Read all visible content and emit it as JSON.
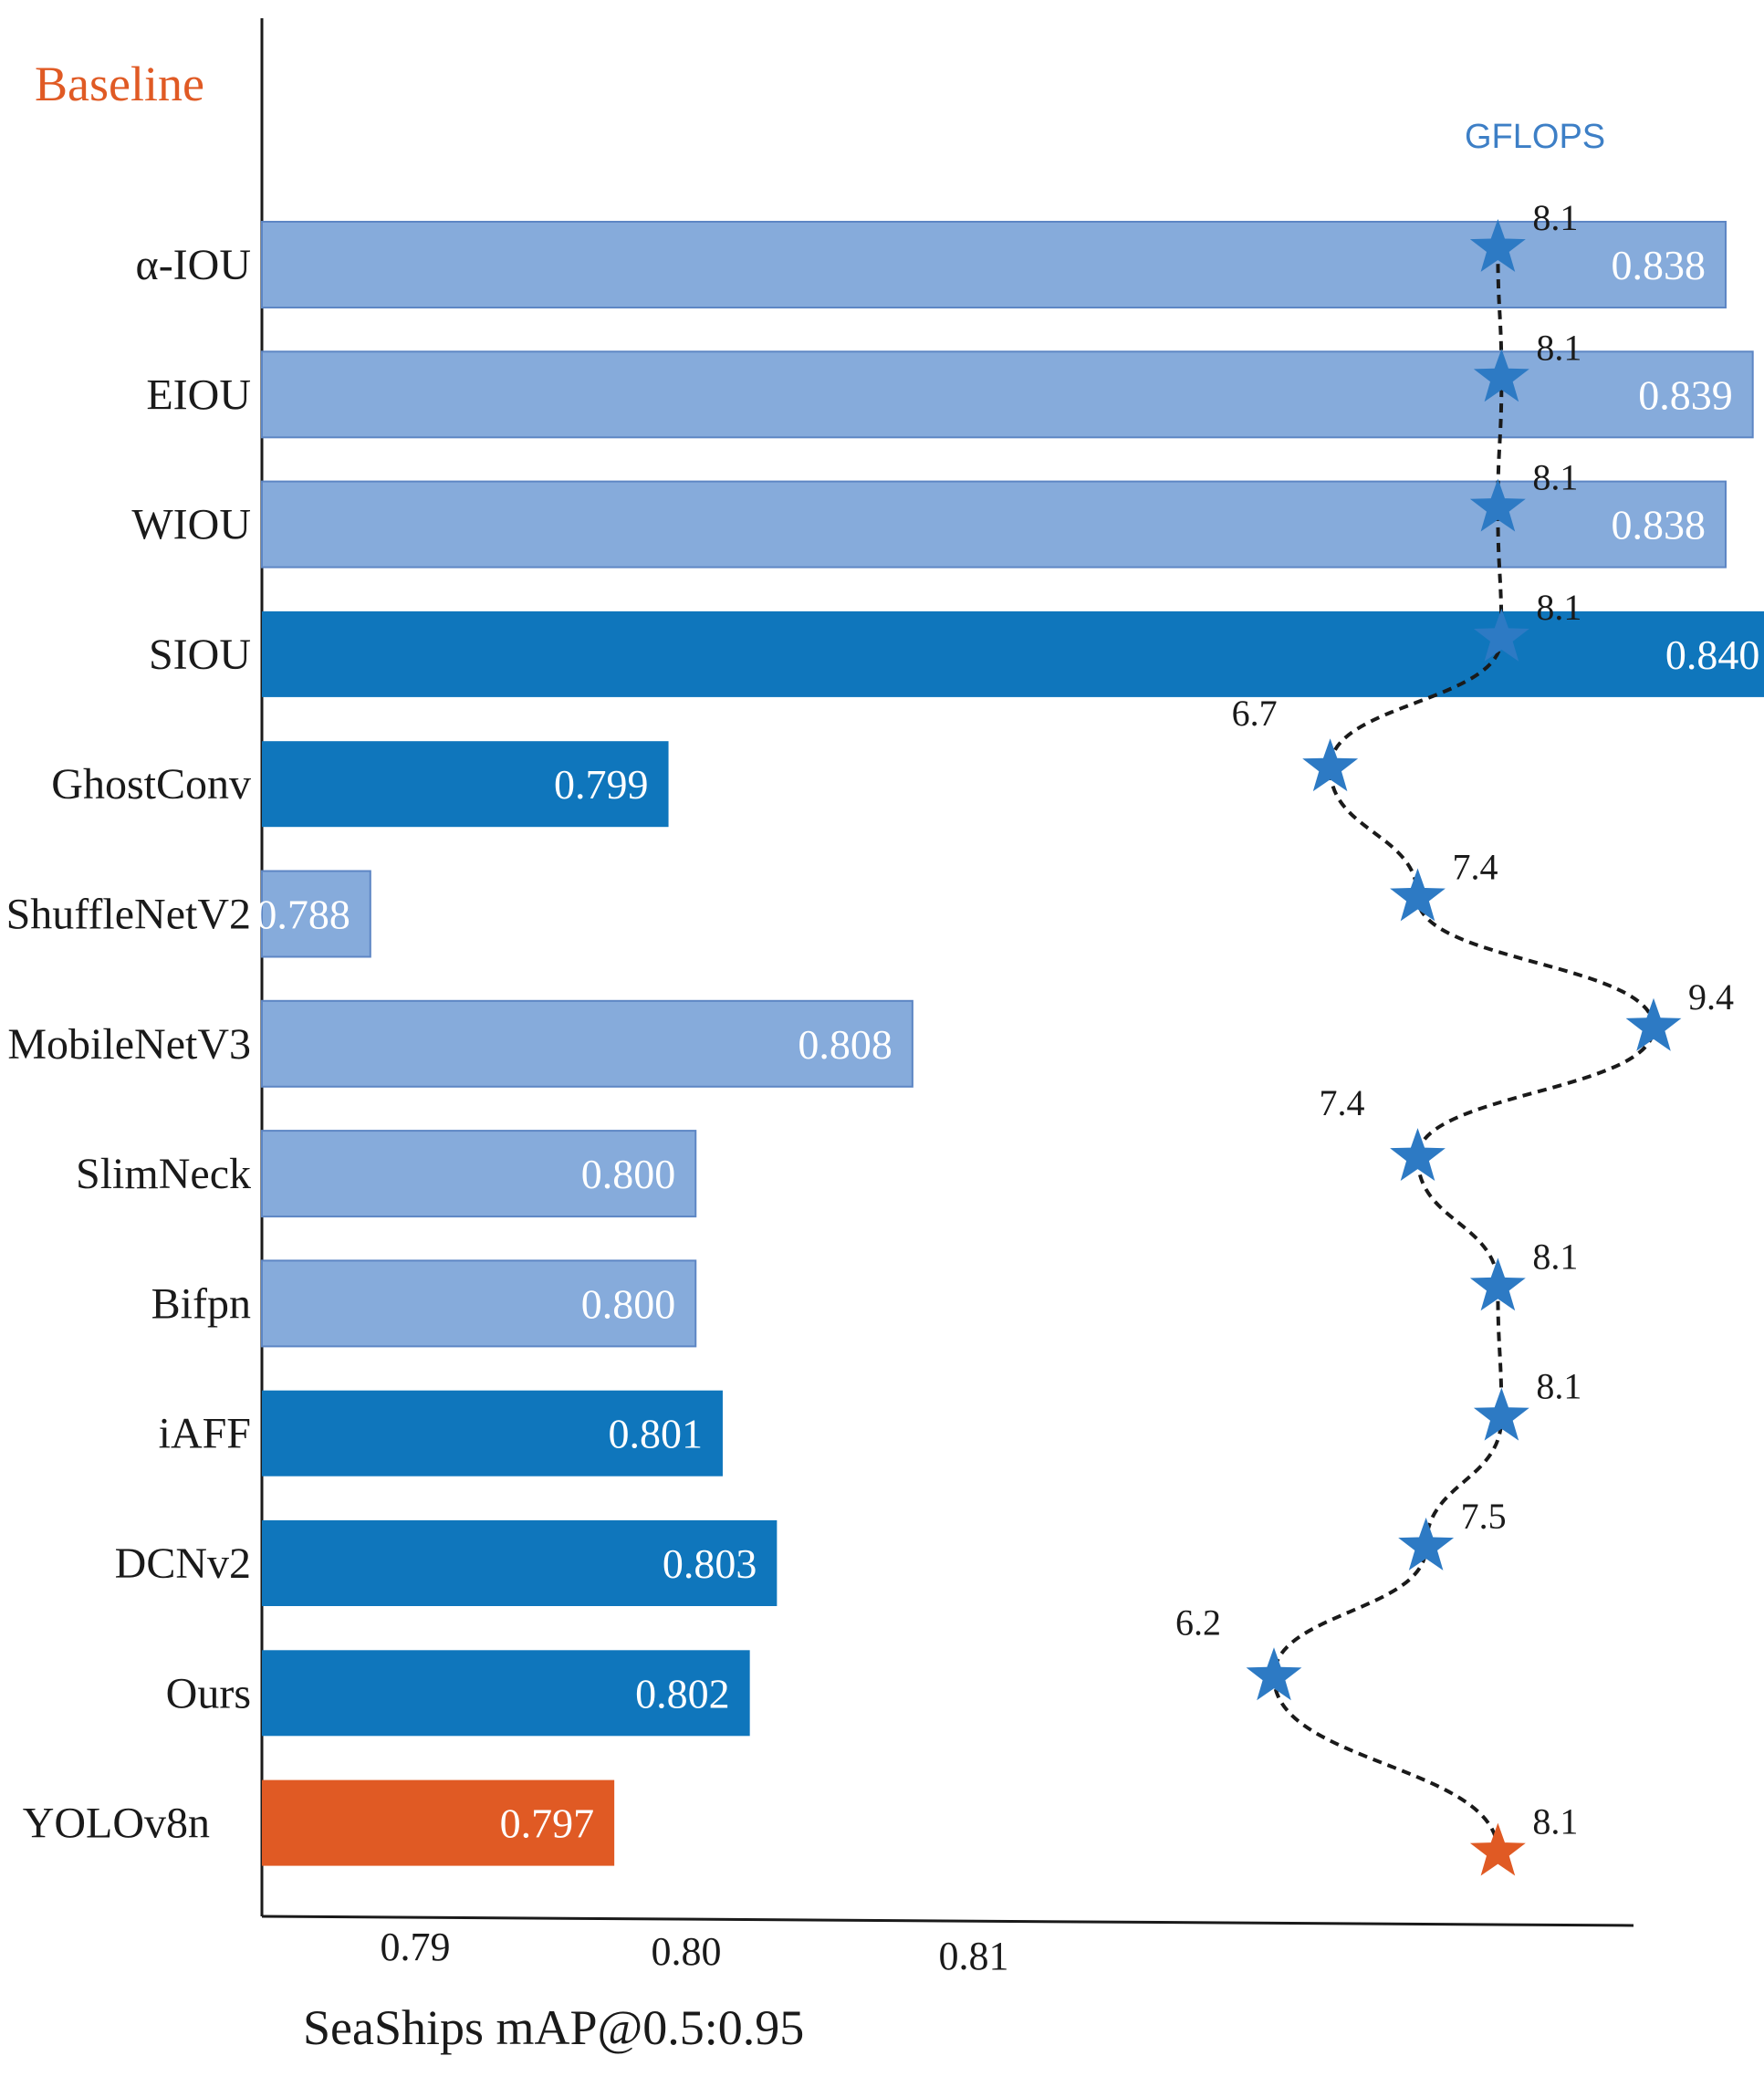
{
  "colors": {
    "light_blue": "#86abdb",
    "dark_blue": "#0f76bc",
    "orange": "#e05a24",
    "star_blue": "#2d7ac4",
    "gflops_title": "#3d7fc6",
    "text": "#1a1a1a"
  },
  "chart_data": {
    "type": "bar",
    "orientation": "horizontal",
    "title": "",
    "xlabel": "SeaShips mAP@0.5:0.95",
    "ylabel": "",
    "x_ticks": [
      "0.79",
      "0.80",
      "0.81"
    ],
    "xlim": [
      0.784,
      0.8346
    ],
    "baseline_label": "Baseline",
    "gflops_title": "GFLOPS",
    "categories": [
      "α-IOU",
      "EIOU",
      "WIOU",
      "SIOU",
      "GhostConv",
      "ShuffleNetV2",
      "MobileNetV3",
      "SlimNeck",
      "Bifpn",
      "iAFF",
      "DCNv2",
      "Ours",
      "YOLOv8n"
    ],
    "values": [
      0.838,
      0.839,
      0.838,
      0.84,
      0.799,
      0.788,
      0.808,
      0.8,
      0.8,
      0.801,
      0.803,
      0.802,
      0.797
    ],
    "value_labels": [
      "0.838",
      "0.839",
      "0.838",
      "0.840",
      "0.799",
      "0.788",
      "0.808",
      "0.800",
      "0.800",
      "0.801",
      "0.803",
      "0.802",
      "0.797"
    ],
    "bar_styles": [
      "light",
      "light",
      "light",
      "dark",
      "dark",
      "light",
      "light",
      "light",
      "light",
      "dark",
      "dark",
      "dark",
      "baseline"
    ],
    "gflops": [
      8.1,
      8.1,
      8.1,
      8.1,
      6.7,
      7.4,
      9.4,
      7.4,
      8.1,
      8.1,
      7.5,
      6.2,
      8.1
    ],
    "gflops_labels": [
      "8.1",
      "8.1",
      "8.1",
      "8.1",
      "6.7",
      "7.4",
      "9.4",
      "7.4",
      "8.1",
      "8.1",
      "7.5",
      "6.2",
      "8.1"
    ],
    "gflops_label_side": [
      "right",
      "right",
      "right",
      "right",
      "left",
      "right",
      "right",
      "left",
      "right",
      "right",
      "right",
      "left",
      "right"
    ]
  }
}
